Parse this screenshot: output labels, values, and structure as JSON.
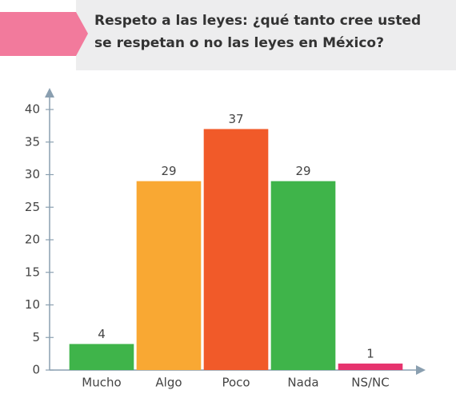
{
  "chart_data": {
    "type": "bar",
    "title": "Respeto a las leyes: ¿qué tanto cree usted se respetan o no las leyes en México?",
    "categories": [
      "Mucho",
      "Algo",
      "Poco",
      "Nada",
      "NS/NC"
    ],
    "values": [
      4,
      29,
      37,
      29,
      1
    ],
    "colors": [
      "#3fb44a",
      "#f9a833",
      "#f15a29",
      "#3fb44a",
      "#e6336e"
    ],
    "ylim": [
      0,
      40
    ],
    "yticks": [
      0,
      5,
      10,
      15,
      20,
      25,
      30,
      35,
      40
    ],
    "grid": false
  }
}
